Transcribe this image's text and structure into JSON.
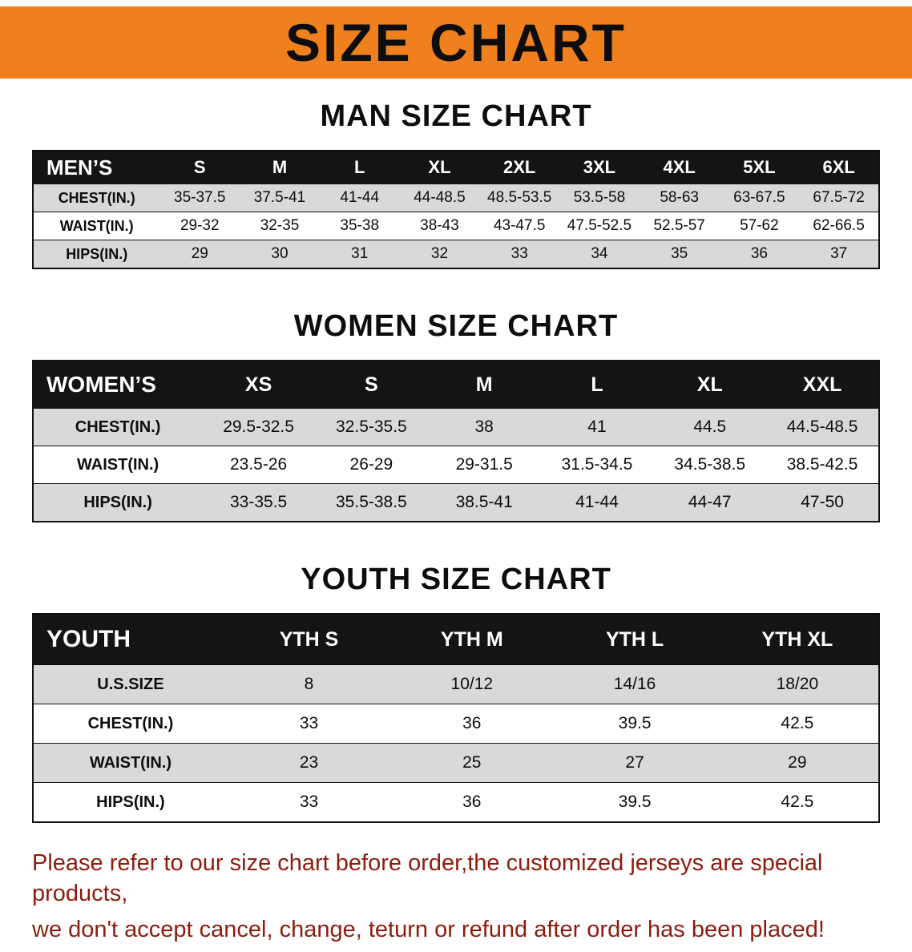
{
  "banner": {
    "title": "SIZE CHART"
  },
  "colors": {
    "banner_bg": "#f0801d",
    "table_header_bg": "#141414",
    "stripe_gray": "#d9d9d9",
    "notice_red": "#8e1c0e"
  },
  "sections": [
    {
      "id": "men",
      "heading": "MAN SIZE CHART",
      "table": {
        "header": [
          "MEN’S",
          "S",
          "M",
          "L",
          "XL",
          "2XL",
          "3XL",
          "4XL",
          "5XL",
          "6XL"
        ],
        "rows": [
          {
            "label": "CHEST(IN.)",
            "values": [
              "35-37.5",
              "37.5-41",
              "41-44",
              "44-48.5",
              "48.5-53.5",
              "53.5-58",
              "58-63",
              "63-67.5",
              "67.5-72"
            ]
          },
          {
            "label": "WAIST(IN.)",
            "values": [
              "29-32",
              "32-35",
              "35-38",
              "38-43",
              "43-47.5",
              "47.5-52.5",
              "52.5-57",
              "57-62",
              "62-66.5"
            ]
          },
          {
            "label": "HIPS(IN.)",
            "values": [
              "29",
              "30",
              "31",
              "32",
              "33",
              "34",
              "35",
              "36",
              "37"
            ]
          }
        ]
      }
    },
    {
      "id": "women",
      "heading": "WOMEN SIZE CHART",
      "table": {
        "header": [
          "WOMEN’S",
          "XS",
          "S",
          "M",
          "L",
          "XL",
          "XXL"
        ],
        "rows": [
          {
            "label": "CHEST(IN.)",
            "values": [
              "29.5-32.5",
              "32.5-35.5",
              "38",
              "41",
              "44.5",
              "44.5-48.5"
            ]
          },
          {
            "label": "WAIST(IN.)",
            "values": [
              "23.5-26",
              "26-29",
              "29-31.5",
              "31.5-34.5",
              "34.5-38.5",
              "38.5-42.5"
            ]
          },
          {
            "label": "HIPS(IN.)",
            "values": [
              "33-35.5",
              "35.5-38.5",
              "38.5-41",
              "41-44",
              "44-47",
              "47-50"
            ]
          }
        ]
      }
    },
    {
      "id": "youth",
      "heading": "YOUTH SIZE CHART",
      "table": {
        "header": [
          "YOUTH",
          "YTH S",
          "YTH M",
          "YTH L",
          "YTH XL"
        ],
        "rows": [
          {
            "label": "U.S.SIZE",
            "values": [
              "8",
              "10/12",
              "14/16",
              "18/20"
            ]
          },
          {
            "label": "CHEST(IN.)",
            "values": [
              "33",
              "36",
              "39.5",
              "42.5"
            ]
          },
          {
            "label": "WAIST(IN.)",
            "values": [
              "23",
              "25",
              "27",
              "29"
            ]
          },
          {
            "label": "HIPS(IN.)",
            "values": [
              "33",
              "36",
              "39.5",
              "42.5"
            ]
          }
        ]
      }
    }
  ],
  "footer": {
    "lines": [
      "Please refer to our size chart before order,the customized jerseys are special products,",
      "we don't accept cancel, change, teturn or refund after order has been placed!"
    ]
  }
}
